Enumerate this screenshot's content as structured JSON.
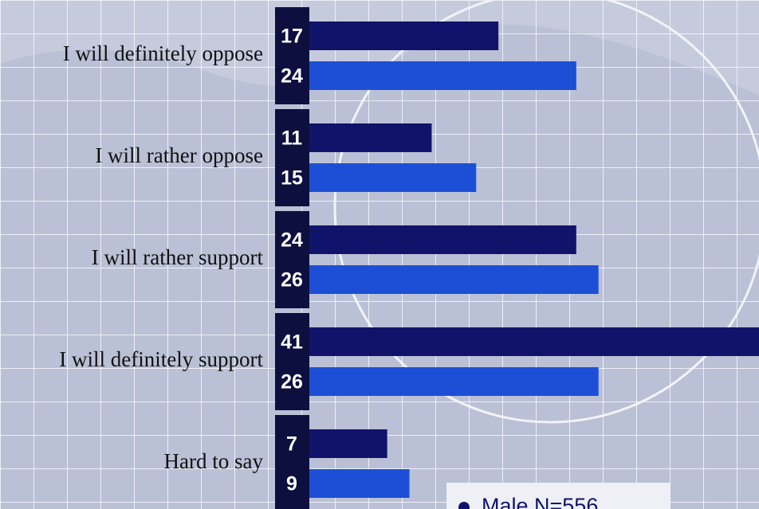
{
  "chart_data": {
    "type": "bar",
    "orientation": "horizontal",
    "categories": [
      "I will definitely oppose",
      "I will rather oppose",
      "I will rather support",
      "I will definitely support",
      "Hard to say"
    ],
    "series": [
      {
        "name": "Male N=556",
        "color": "#11136b",
        "values": [
          17,
          11,
          24,
          41,
          7
        ]
      },
      {
        "color": "#1d4fd6",
        "values": [
          24,
          15,
          26,
          26,
          9
        ]
      }
    ]
  }
}
